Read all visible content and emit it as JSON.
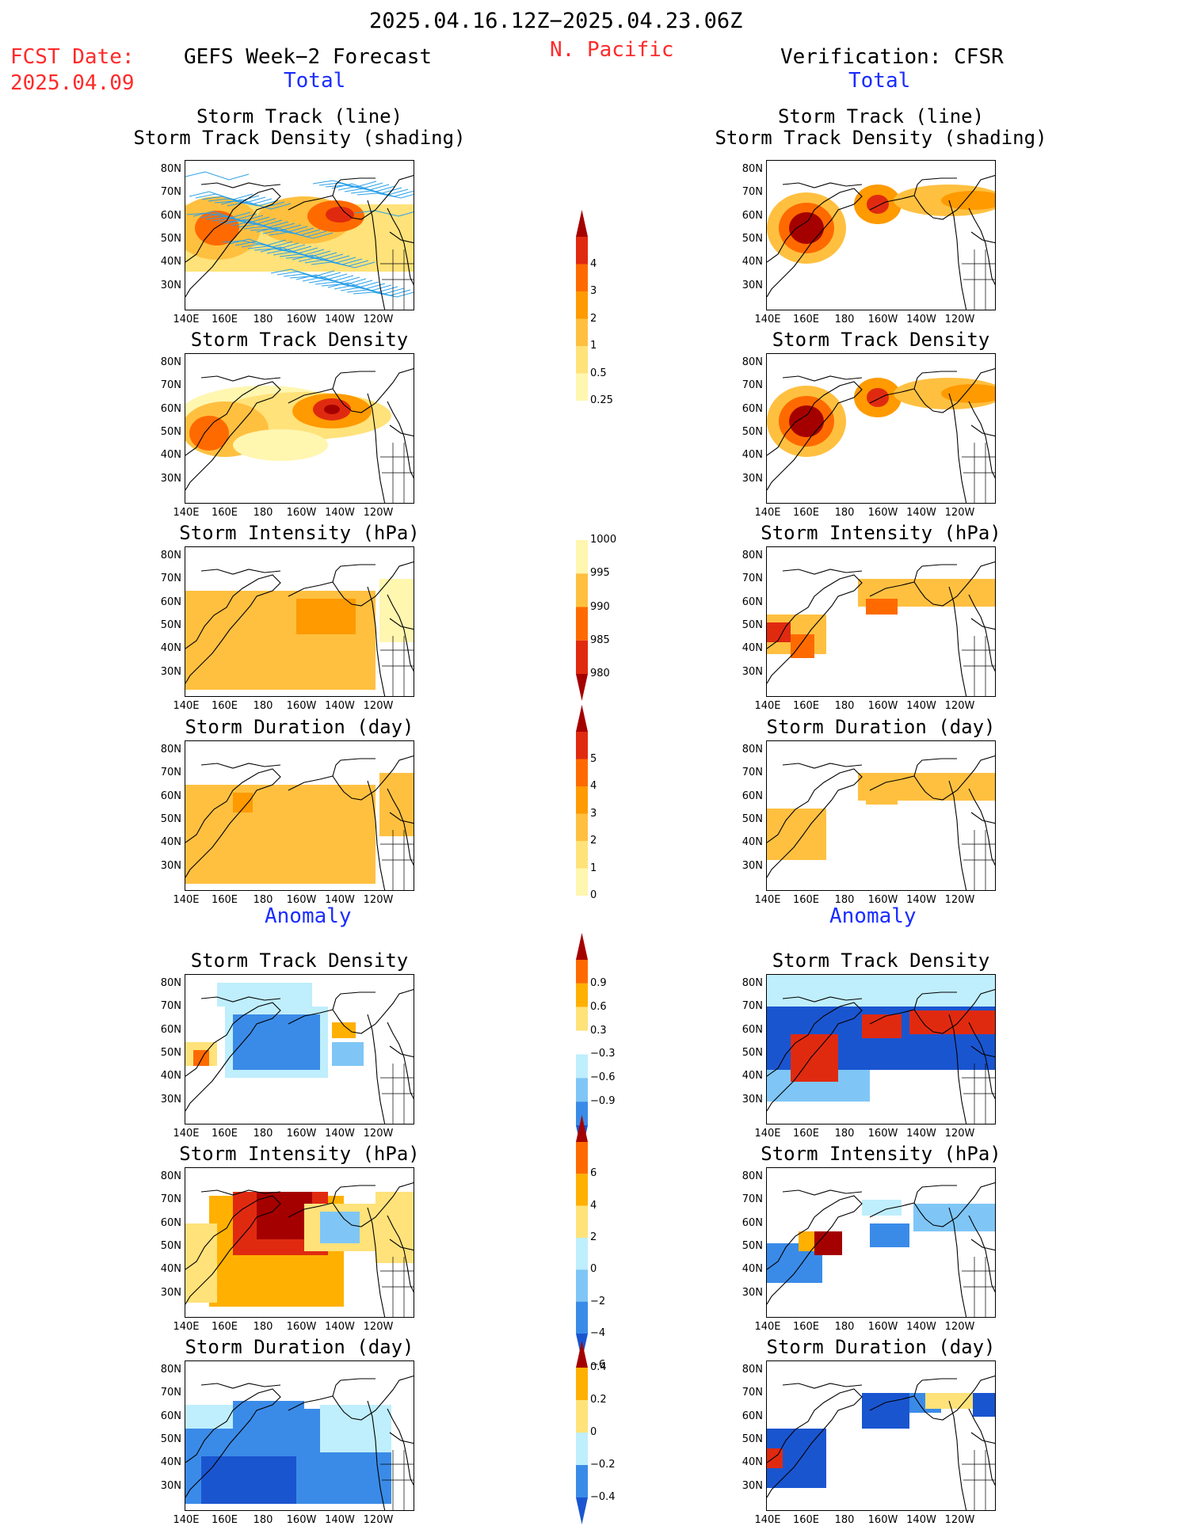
{
  "header": {
    "date_range": "2025.04.16.12Z−2025.04.23.06Z",
    "region": "N. Pacific",
    "fcst_label": "FCST Date:",
    "fcst_date": "2025.04.09",
    "left_title": "GEFS Week−2 Forecast",
    "right_title": "Verification: CFSR",
    "left_total": "Total",
    "right_total": "Total",
    "left_anomaly": "Anomaly",
    "right_anomaly": "Anomaly"
  },
  "panel_titles": {
    "track": "Storm Track (line)\nStorm Track Density (shading)",
    "density": "Storm Track Density",
    "intensity": "Storm Intensity (hPa)",
    "duration": "Storm Duration (day)"
  },
  "axes": {
    "lat_labels": [
      "80N",
      "70N",
      "60N",
      "50N",
      "40N",
      "30N"
    ],
    "lon_labels": [
      "140E",
      "160E",
      "180",
      "160W",
      "140W",
      "120W"
    ]
  },
  "colorbars": {
    "density": [
      "4",
      "3",
      "2",
      "1",
      "0.5",
      "0.25"
    ],
    "intensity": [
      "1000",
      "995",
      "990",
      "985",
      "980"
    ],
    "duration": [
      "5",
      "4",
      "3",
      "2",
      "1",
      "0"
    ],
    "density_anom": [
      "0.9",
      "0.6",
      "0.3",
      "−0.3",
      "−0.6",
      "−0.9"
    ],
    "intensity_anom": [
      "6",
      "4",
      "2",
      "0",
      "−2",
      "−4",
      "−6"
    ],
    "duration_anom": [
      "0.4",
      "0.2",
      "0",
      "−0.2",
      "−0.4"
    ]
  },
  "colors": {
    "total_scale": [
      "#fff6b0",
      "#ffe27a",
      "#ffc040",
      "#ff9a00",
      "#ff6a00",
      "#e02a10",
      "#a50000"
    ],
    "anom_pos": [
      "#ffe27a",
      "#ffb000",
      "#ff6a00",
      "#e02a10",
      "#a50000"
    ],
    "anom_neg": [
      "#bfeefc",
      "#7fc6f6",
      "#3a8be8",
      "#1a55d0"
    ],
    "track_line": "#2aa0e8",
    "title_red": "#ff2a2a",
    "title_blue": "#1a2cff"
  }
}
